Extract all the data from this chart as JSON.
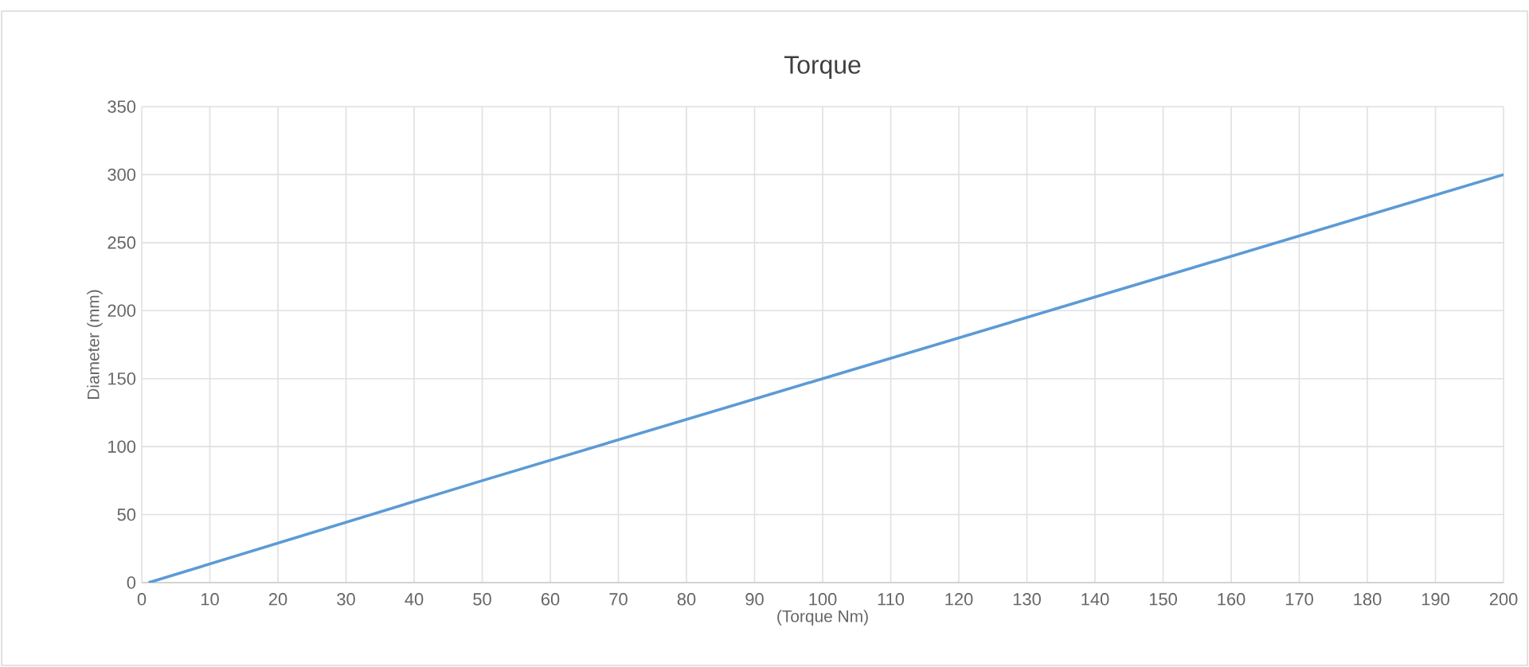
{
  "chart_data": {
    "type": "line",
    "title": "Torque",
    "xlabel": "(Torque Nm)",
    "ylabel": "Diameter (mm)",
    "x": [
      1,
      50,
      100,
      150,
      200
    ],
    "series": [
      {
        "color": "#5b9bd5",
        "values": [
          0,
          75,
          150,
          225,
          300
        ]
      }
    ],
    "xlim": [
      0,
      200
    ],
    "ylim": [
      0,
      350
    ],
    "xticks": [
      0,
      10,
      20,
      30,
      40,
      50,
      60,
      70,
      80,
      90,
      100,
      110,
      120,
      130,
      140,
      150,
      160,
      170,
      180,
      190,
      200
    ],
    "yticks": [
      0,
      50,
      100,
      150,
      200,
      250,
      300,
      350
    ],
    "grid": true,
    "marker": "none",
    "line_style": "solid"
  }
}
